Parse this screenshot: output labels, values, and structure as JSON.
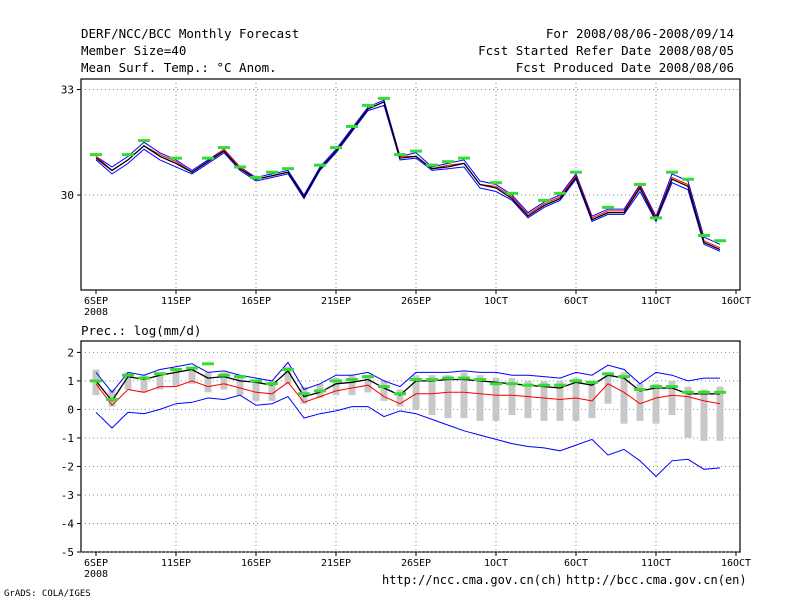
{
  "header": {
    "title": "DERF/NCC/BCC Monthly Forecast",
    "member_size": "Member Size=40",
    "variable": "Mean Surf. Temp.: °C Anom.",
    "period": "For 2008/08/06-2008/09/14",
    "started": "Fcst Started Refer Date 2008/08/05",
    "produced": "Fcst Produced Date 2008/08/06"
  },
  "footer": {
    "url_ch": "http://ncc.cma.gov.cn(ch)",
    "url_en": "http://bcc.cma.gov.cn(en)",
    "credit": "GrADS: COLA/IGES"
  },
  "colors": {
    "mean": "#000000",
    "ensemble": "#0000ff",
    "median": "#ff0000",
    "observed": "#33dd33",
    "spread": "#c8c8c8",
    "grid": "#888888"
  },
  "chart_data": [
    {
      "type": "line",
      "title": "Mean Surf. Temp.: °C Anom.",
      "x": [
        "6SEP",
        "7SEP",
        "8SEP",
        "9SEP",
        "10SEP",
        "11SEP",
        "12SEP",
        "13SEP",
        "14SEP",
        "15SEP",
        "16SEP",
        "17SEP",
        "18SEP",
        "19SEP",
        "20SEP",
        "21SEP",
        "22SEP",
        "23SEP",
        "24SEP",
        "25SEP",
        "26SEP",
        "27SEP",
        "28SEP",
        "29SEP",
        "30SEP",
        "1OCT",
        "2OCT",
        "3OCT",
        "4OCT",
        "5OCT",
        "6OCT",
        "7OCT",
        "8OCT",
        "9OCT",
        "10OCT",
        "11OCT",
        "12OCT",
        "13OCT",
        "14OCT",
        "15OCT"
      ],
      "x_tick_labels": [
        "6SEP",
        "11SEP",
        "16SEP",
        "21SEP",
        "26SEP",
        "1OCT",
        "6OCT",
        "11OCT",
        "16OCT"
      ],
      "x_year_label": "2008",
      "ylim": [
        27.3,
        33.3
      ],
      "y_ticks": [
        30,
        33
      ],
      "grid": true,
      "series": [
        {
          "name": "upper",
          "color": "#0000ff",
          "values": [
            31.1,
            30.8,
            31.1,
            31.5,
            31.2,
            31.0,
            30.7,
            31.0,
            31.3,
            30.8,
            30.5,
            30.6,
            30.7,
            30.0,
            30.8,
            31.3,
            31.9,
            32.5,
            32.7,
            31.1,
            31.2,
            30.8,
            30.9,
            31.0,
            30.4,
            30.3,
            30.0,
            29.5,
            29.8,
            30.0,
            30.6,
            29.4,
            29.6,
            29.6,
            30.3,
            29.4,
            30.6,
            30.4,
            28.8,
            28.6
          ]
        },
        {
          "name": "lower",
          "color": "#0000ff",
          "values": [
            31.0,
            30.6,
            30.9,
            31.3,
            31.0,
            30.8,
            30.6,
            30.9,
            31.2,
            30.7,
            30.4,
            30.5,
            30.6,
            29.9,
            30.7,
            31.2,
            31.8,
            32.4,
            32.55,
            31.0,
            31.05,
            30.7,
            30.75,
            30.8,
            30.2,
            30.1,
            29.85,
            29.35,
            29.65,
            29.85,
            30.45,
            29.25,
            29.45,
            29.45,
            30.1,
            29.25,
            30.35,
            30.15,
            28.6,
            28.4
          ]
        },
        {
          "name": "median",
          "color": "#ff0000",
          "values": [
            31.1,
            30.7,
            31.0,
            31.4,
            31.15,
            30.95,
            30.65,
            30.95,
            31.3,
            30.8,
            30.45,
            30.55,
            30.65,
            29.95,
            30.75,
            31.25,
            31.85,
            32.45,
            32.65,
            31.1,
            31.1,
            30.75,
            30.85,
            30.9,
            30.3,
            30.25,
            29.95,
            29.45,
            29.75,
            29.95,
            30.55,
            29.35,
            29.55,
            29.55,
            30.25,
            29.35,
            30.5,
            30.3,
            28.7,
            28.5
          ]
        },
        {
          "name": "mean",
          "color": "#000000",
          "values": [
            31.05,
            30.7,
            31.0,
            31.4,
            31.1,
            30.9,
            30.65,
            30.95,
            31.25,
            30.75,
            30.45,
            30.55,
            30.65,
            29.95,
            30.75,
            31.25,
            31.85,
            32.45,
            32.65,
            31.05,
            31.1,
            30.75,
            30.8,
            30.9,
            30.3,
            30.2,
            29.9,
            29.4,
            29.7,
            29.9,
            30.5,
            29.3,
            29.5,
            29.5,
            30.2,
            29.3,
            30.45,
            30.25,
            28.65,
            28.45
          ]
        },
        {
          "name": "observed",
          "color": "#33dd33",
          "values": [
            31.15,
            null,
            31.15,
            31.55,
            null,
            31.05,
            null,
            31.05,
            31.35,
            30.8,
            30.5,
            30.65,
            30.75,
            null,
            30.85,
            31.35,
            31.95,
            32.55,
            32.75,
            31.15,
            31.25,
            30.85,
            30.95,
            31.05,
            null,
            30.35,
            30.05,
            null,
            29.85,
            30.05,
            30.65,
            null,
            29.65,
            null,
            30.3,
            29.35,
            30.65,
            30.45,
            28.85,
            28.7
          ]
        }
      ]
    },
    {
      "type": "line",
      "title": "Prec.: log(mm/d)",
      "x": [
        "6SEP",
        "7SEP",
        "8SEP",
        "9SEP",
        "10SEP",
        "11SEP",
        "12SEP",
        "13SEP",
        "14SEP",
        "15SEP",
        "16SEP",
        "17SEP",
        "18SEP",
        "19SEP",
        "20SEP",
        "21SEP",
        "22SEP",
        "23SEP",
        "24SEP",
        "25SEP",
        "26SEP",
        "27SEP",
        "28SEP",
        "29SEP",
        "30SEP",
        "1OCT",
        "2OCT",
        "3OCT",
        "4OCT",
        "5OCT",
        "6OCT",
        "7OCT",
        "8OCT",
        "9OCT",
        "10OCT",
        "11OCT",
        "12OCT",
        "13OCT",
        "14OCT",
        "15OCT"
      ],
      "x_tick_labels": [
        "6SEP",
        "11SEP",
        "16SEP",
        "21SEP",
        "26SEP",
        "1OCT",
        "6OCT",
        "11OCT",
        "16OCT"
      ],
      "x_year_label": "2008",
      "ylim": [
        -5,
        2.4
      ],
      "y_ticks": [
        -5,
        -4,
        -3,
        -2,
        -1,
        0,
        1,
        2
      ],
      "grid": true,
      "spread_bars": [
        [
          0.5,
          1.4
        ],
        [
          0.1,
          0.7
        ],
        [
          0.7,
          1.3
        ],
        [
          0.6,
          1.2
        ],
        [
          0.7,
          1.3
        ],
        [
          0.8,
          1.4
        ],
        [
          0.9,
          1.5
        ],
        [
          0.6,
          1.3
        ],
        [
          0.7,
          1.3
        ],
        [
          0.5,
          1.1
        ],
        [
          0.3,
          1.0
        ],
        [
          0.3,
          1.0
        ],
        [
          0.9,
          1.5
        ],
        [
          0.2,
          0.8
        ],
        [
          0.4,
          0.9
        ],
        [
          0.5,
          1.1
        ],
        [
          0.5,
          1.2
        ],
        [
          0.6,
          1.2
        ],
        [
          0.3,
          1.0
        ],
        [
          0.1,
          0.7
        ],
        [
          0.0,
          1.2
        ],
        [
          -0.2,
          1.2
        ],
        [
          -0.3,
          1.2
        ],
        [
          -0.3,
          1.3
        ],
        [
          -0.4,
          1.2
        ],
        [
          -0.4,
          1.1
        ],
        [
          -0.2,
          1.1
        ],
        [
          -0.3,
          1.0
        ],
        [
          -0.4,
          1.0
        ],
        [
          -0.4,
          1.0
        ],
        [
          -0.4,
          1.1
        ],
        [
          -0.3,
          1.0
        ],
        [
          0.2,
          1.3
        ],
        [
          -0.5,
          1.3
        ],
        [
          -0.4,
          0.9
        ],
        [
          -0.5,
          0.9
        ],
        [
          -0.2,
          1.0
        ],
        [
          -1.0,
          0.8
        ],
        [
          -1.1,
          0.7
        ],
        [
          -1.1,
          0.8
        ]
      ],
      "series": [
        {
          "name": "ensemble-max",
          "color": "#0000ff",
          "values": [
            1.3,
            0.6,
            1.3,
            1.2,
            1.4,
            1.5,
            1.6,
            1.3,
            1.35,
            1.2,
            1.1,
            1.0,
            1.65,
            0.7,
            0.9,
            1.2,
            1.2,
            1.3,
            1.0,
            0.8,
            1.3,
            1.3,
            1.3,
            1.35,
            1.3,
            1.3,
            1.2,
            1.2,
            1.15,
            1.1,
            1.3,
            1.2,
            1.55,
            1.4,
            0.9,
            1.3,
            1.2,
            1.0,
            1.1,
            1.1
          ]
        },
        {
          "name": "ensemble-min",
          "color": "#0000ff",
          "values": [
            -0.1,
            -0.65,
            -0.1,
            -0.15,
            0.0,
            0.2,
            0.25,
            0.4,
            0.35,
            0.5,
            0.15,
            0.2,
            0.45,
            -0.3,
            -0.15,
            -0.05,
            0.1,
            0.1,
            -0.25,
            -0.05,
            -0.15,
            -0.35,
            -0.55,
            -0.75,
            -0.9,
            -1.05,
            -1.2,
            -1.3,
            -1.35,
            -1.45,
            -1.25,
            -1.05,
            -1.6,
            -1.4,
            -1.8,
            -2.35,
            -1.8,
            -1.75,
            -2.1,
            -2.05
          ]
        },
        {
          "name": "median",
          "color": "#ff0000",
          "values": [
            0.9,
            0.15,
            0.7,
            0.6,
            0.8,
            0.8,
            1.0,
            0.8,
            0.9,
            0.75,
            0.6,
            0.55,
            0.95,
            0.25,
            0.45,
            0.65,
            0.75,
            0.85,
            0.45,
            0.2,
            0.55,
            0.55,
            0.6,
            0.6,
            0.55,
            0.5,
            0.5,
            0.45,
            0.4,
            0.35,
            0.4,
            0.3,
            0.9,
            0.6,
            0.2,
            0.4,
            0.5,
            0.45,
            0.3,
            0.2
          ]
        },
        {
          "name": "mean",
          "color": "#000000",
          "values": [
            1.0,
            0.3,
            1.15,
            1.05,
            1.2,
            1.3,
            1.4,
            1.1,
            1.15,
            1.0,
            0.95,
            0.85,
            1.35,
            0.45,
            0.6,
            0.9,
            0.95,
            1.05,
            0.75,
            0.5,
            1.0,
            1.0,
            1.05,
            1.05,
            1.0,
            0.95,
            0.9,
            0.85,
            0.8,
            0.75,
            0.95,
            0.85,
            1.2,
            1.1,
            0.65,
            0.75,
            0.75,
            0.55,
            0.55,
            0.55
          ]
        },
        {
          "name": "observed",
          "color": "#33dd33",
          "values": [
            1.0,
            0.35,
            1.2,
            1.1,
            1.25,
            1.4,
            1.45,
            1.6,
            1.2,
            1.15,
            1.0,
            0.9,
            1.4,
            0.55,
            0.65,
            1.0,
            1.05,
            1.15,
            0.8,
            0.55,
            1.05,
            1.05,
            1.1,
            1.1,
            1.05,
            0.9,
            0.9,
            0.85,
            0.85,
            0.85,
            1.0,
            0.95,
            1.25,
            1.15,
            0.7,
            0.8,
            0.8,
            0.6,
            0.6,
            0.6
          ]
        }
      ]
    }
  ]
}
